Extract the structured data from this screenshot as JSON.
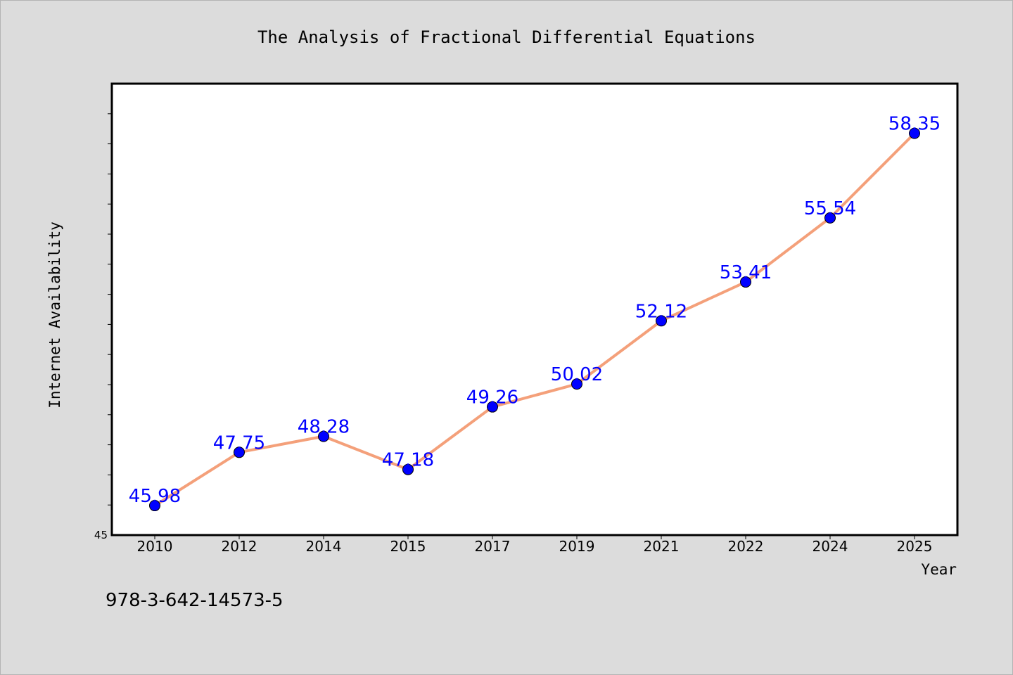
{
  "chart_data": {
    "type": "line",
    "title": "The Analysis of Fractional Differential Equations",
    "xlabel": "Year",
    "ylabel": "Internet Availability",
    "categories": [
      "2010",
      "2012",
      "2014",
      "2015",
      "2017",
      "2019",
      "2021",
      "2022",
      "2024",
      "2025"
    ],
    "series": [
      {
        "values": [
          45.98,
          47.75,
          48.28,
          47.18,
          49.26,
          50.02,
          52.12,
          53.41,
          55.54,
          58.35
        ],
        "line_color": "#f4a07a",
        "marker_color": "#0000ff"
      }
    ],
    "data_labels": [
      "45.98",
      "47.75",
      "48.28",
      "47.18",
      "49.26",
      "50.02",
      "52.12",
      "53.41",
      "55.54",
      "58.35"
    ],
    "y_tick_labels": [
      "45"
    ],
    "ylim": [
      45,
      60
    ],
    "grid": false,
    "label_color": "#0000ff"
  },
  "annotation": "978-3-642-14573-5"
}
